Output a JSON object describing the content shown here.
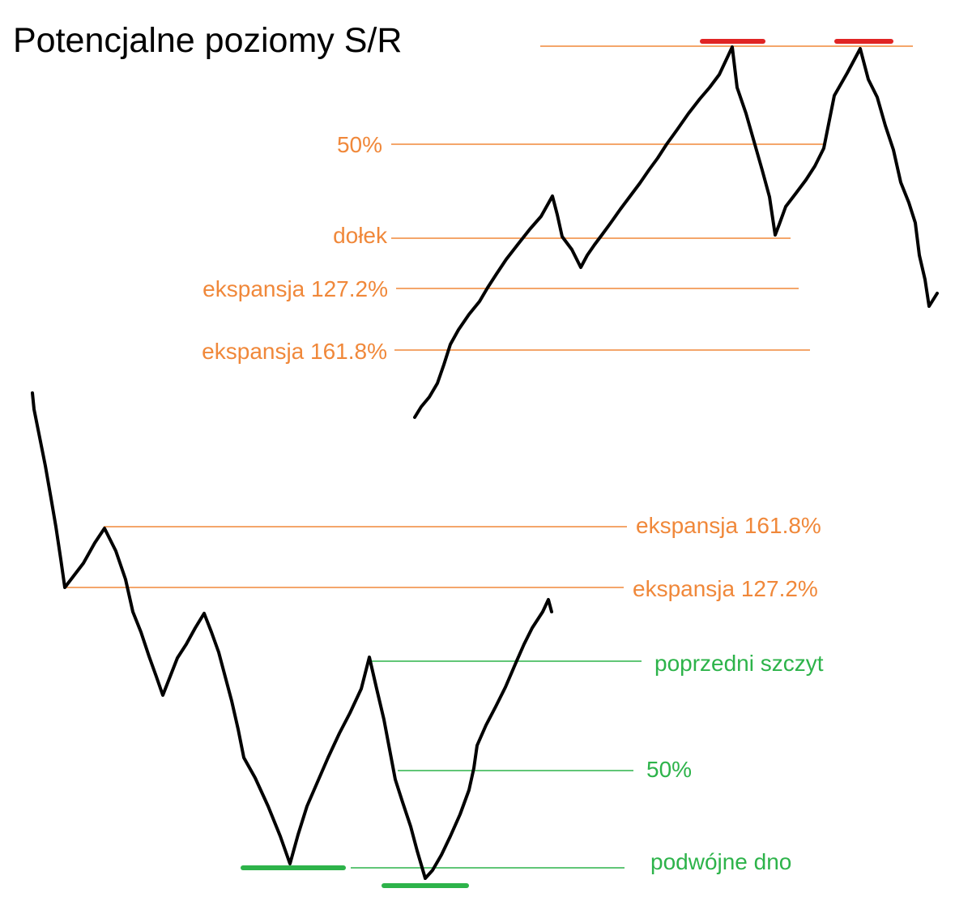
{
  "title": "Potencjalne poziomy S/R",
  "colors": {
    "orange": "#f0883a",
    "green": "#2db34a",
    "red": "#e02424",
    "price_line": "#000000"
  },
  "top_scenario": {
    "labels": {
      "fifty": "50%",
      "dolek": "dołek",
      "exp127": "ekspansja 127.2%",
      "exp161": "ekspansja 161.8%"
    }
  },
  "bottom_scenario": {
    "labels": {
      "exp161": "ekspansja 161.8%",
      "exp127": "ekspansja 127.2%",
      "prev_peak": "poprzedni szczyt",
      "fifty": "50%",
      "double_bottom": "podwójne dno"
    }
  }
}
